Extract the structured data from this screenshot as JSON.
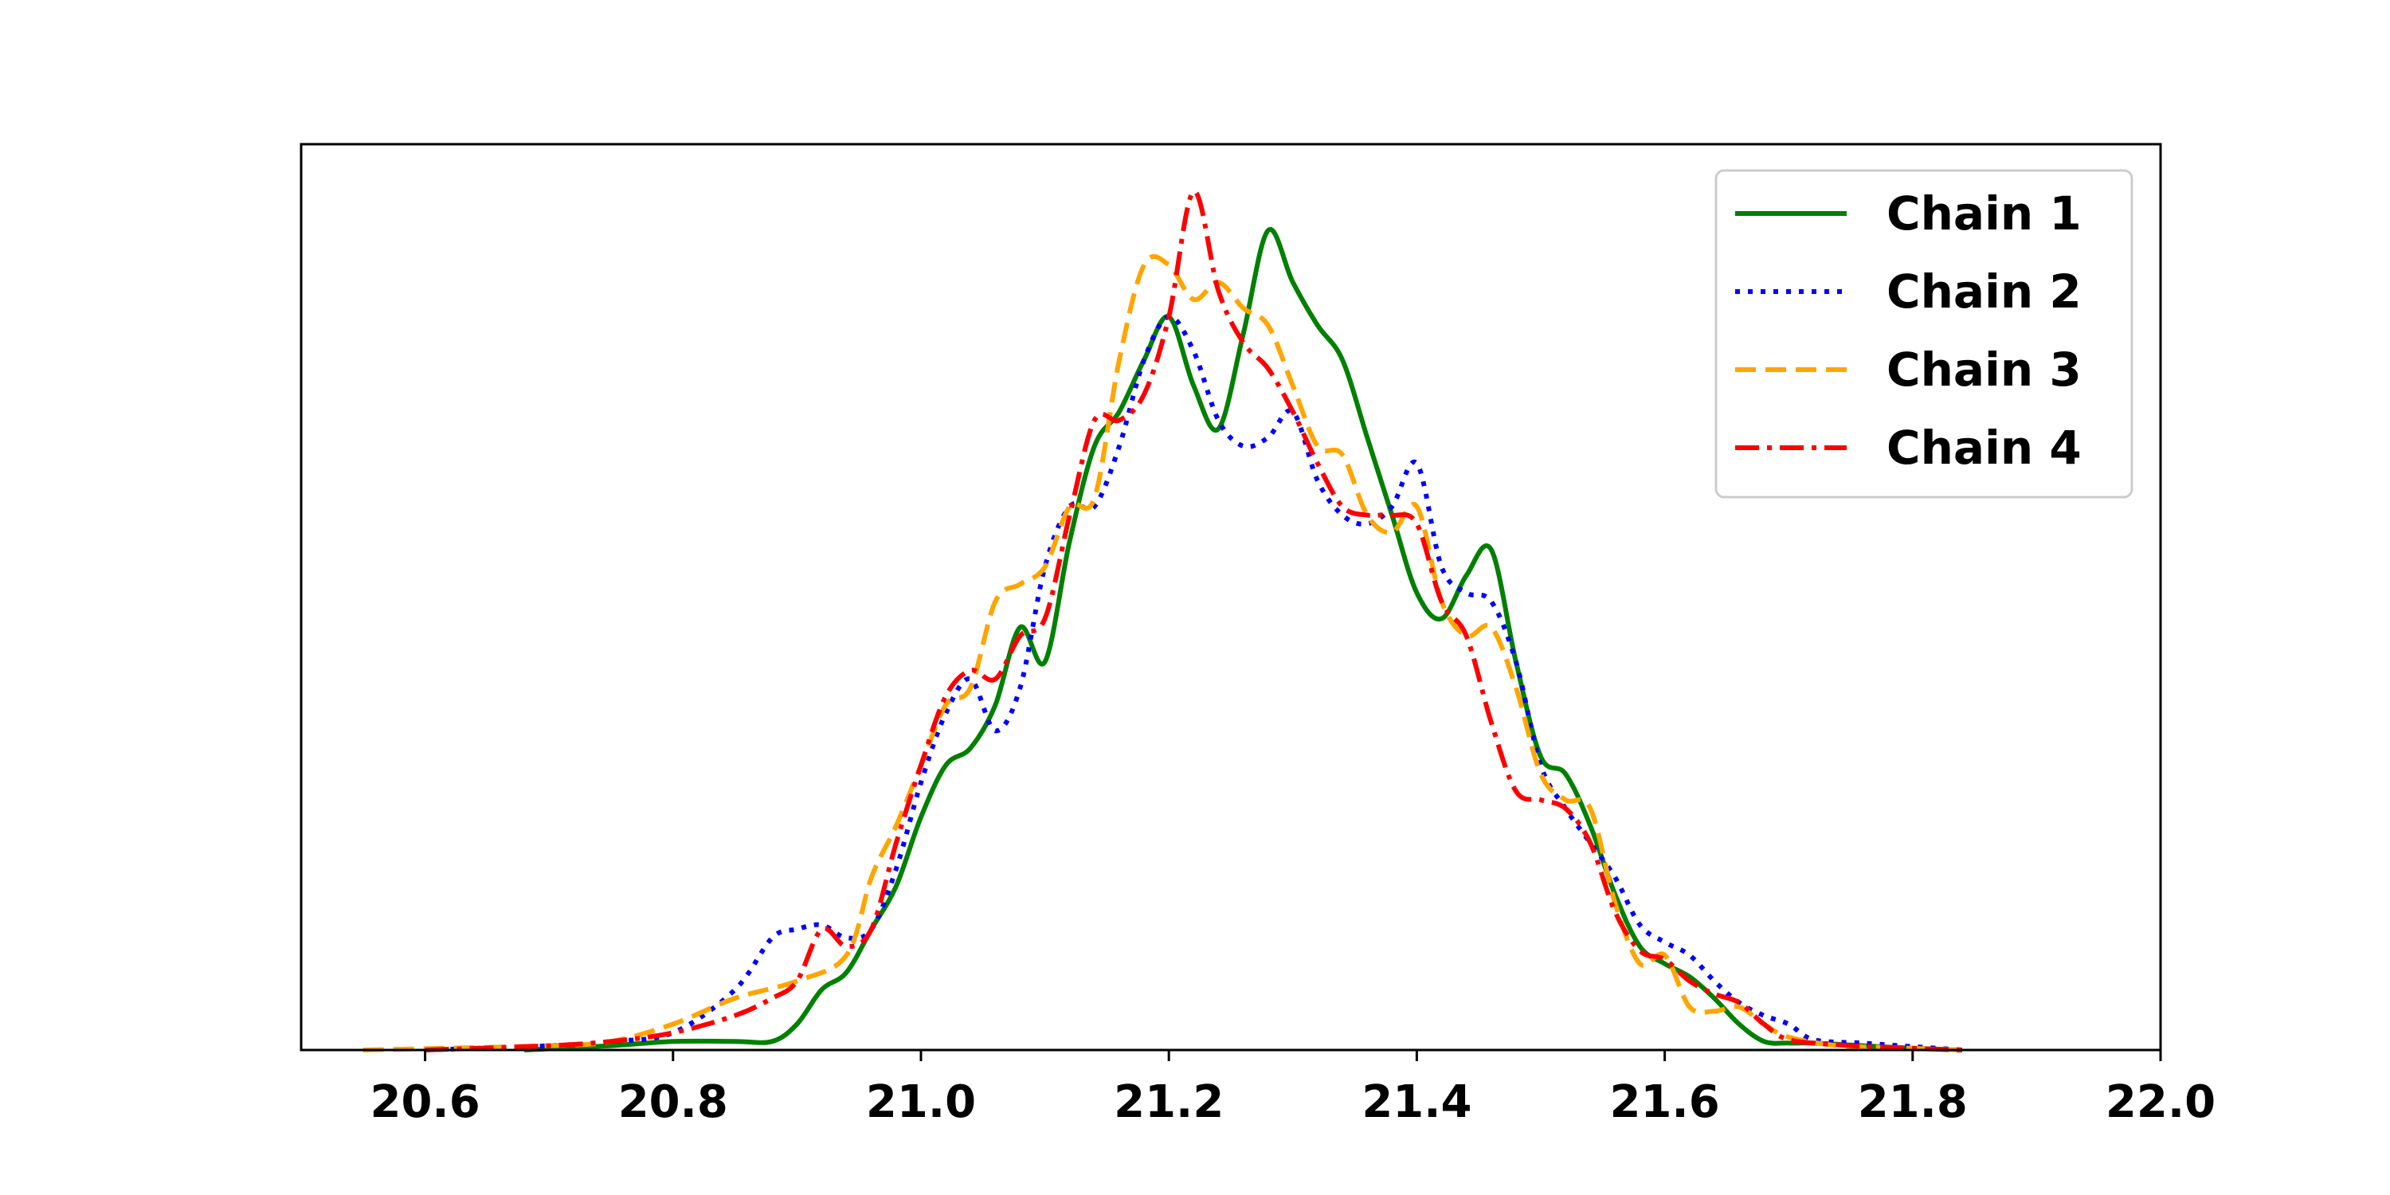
{
  "chart_data": {
    "type": "line",
    "title": "",
    "xlabel": "",
    "ylabel": "",
    "xlim": [
      20.5,
      22.0
    ],
    "ylim": [
      0,
      1.05
    ],
    "xticks": [
      "20.6",
      "20.8",
      "21.0",
      "21.2",
      "21.4",
      "21.6",
      "21.8",
      "22.0"
    ],
    "yticks_visible": false,
    "grid": false,
    "legend_position": "top-right",
    "series": [
      {
        "name": "Chain 1",
        "color": "#008000",
        "dash": "solid",
        "x": [
          20.68,
          20.75,
          20.8,
          20.85,
          20.88,
          20.9,
          20.92,
          20.94,
          20.96,
          20.98,
          21.0,
          21.02,
          21.04,
          21.06,
          21.08,
          21.1,
          21.12,
          21.14,
          21.16,
          21.18,
          21.2,
          21.22,
          21.24,
          21.26,
          21.28,
          21.3,
          21.32,
          21.34,
          21.36,
          21.38,
          21.4,
          21.42,
          21.44,
          21.46,
          21.48,
          21.5,
          21.52,
          21.54,
          21.56,
          21.58,
          21.6,
          21.62,
          21.64,
          21.66,
          21.68,
          21.7,
          21.72,
          21.76,
          21.8,
          21.84
        ],
        "y": [
          0.0,
          0.005,
          0.01,
          0.01,
          0.01,
          0.03,
          0.07,
          0.09,
          0.14,
          0.19,
          0.27,
          0.33,
          0.35,
          0.4,
          0.49,
          0.45,
          0.59,
          0.7,
          0.74,
          0.8,
          0.85,
          0.77,
          0.72,
          0.83,
          0.95,
          0.89,
          0.84,
          0.8,
          0.71,
          0.62,
          0.53,
          0.5,
          0.55,
          0.58,
          0.45,
          0.34,
          0.32,
          0.26,
          0.18,
          0.12,
          0.1,
          0.085,
          0.06,
          0.03,
          0.01,
          0.008,
          0.008,
          0.005,
          0.002,
          0.0
        ]
      },
      {
        "name": "Chain 2",
        "color": "#0000ff",
        "dash": "dotted",
        "x": [
          20.6,
          20.7,
          20.75,
          20.8,
          20.85,
          20.88,
          20.9,
          20.92,
          20.94,
          20.96,
          20.98,
          21.0,
          21.02,
          21.04,
          21.06,
          21.08,
          21.1,
          21.12,
          21.14,
          21.16,
          21.18,
          21.2,
          21.22,
          21.24,
          21.26,
          21.28,
          21.3,
          21.32,
          21.34,
          21.36,
          21.38,
          21.4,
          21.42,
          21.44,
          21.46,
          21.48,
          21.5,
          21.52,
          21.54,
          21.56,
          21.58,
          21.6,
          21.62,
          21.64,
          21.66,
          21.68,
          21.7,
          21.72,
          21.76,
          21.8,
          21.84
        ],
        "y": [
          0.0,
          0.005,
          0.01,
          0.02,
          0.07,
          0.13,
          0.14,
          0.145,
          0.13,
          0.14,
          0.21,
          0.31,
          0.39,
          0.43,
          0.37,
          0.42,
          0.56,
          0.63,
          0.63,
          0.7,
          0.8,
          0.85,
          0.81,
          0.73,
          0.7,
          0.71,
          0.74,
          0.66,
          0.62,
          0.61,
          0.63,
          0.68,
          0.56,
          0.53,
          0.52,
          0.45,
          0.33,
          0.28,
          0.24,
          0.2,
          0.145,
          0.125,
          0.11,
          0.08,
          0.055,
          0.04,
          0.03,
          0.012,
          0.008,
          0.004,
          0.0
        ]
      },
      {
        "name": "Chain 3",
        "color": "#ffa500",
        "dash": "dashed",
        "x": [
          20.55,
          20.7,
          20.75,
          20.8,
          20.85,
          20.9,
          20.94,
          20.96,
          20.98,
          21.0,
          21.02,
          21.04,
          21.06,
          21.08,
          21.1,
          21.12,
          21.14,
          21.16,
          21.18,
          21.2,
          21.22,
          21.24,
          21.26,
          21.28,
          21.3,
          21.32,
          21.34,
          21.36,
          21.38,
          21.4,
          21.42,
          21.44,
          21.46,
          21.48,
          21.5,
          21.52,
          21.54,
          21.56,
          21.58,
          21.6,
          21.62,
          21.64,
          21.66,
          21.68,
          21.7,
          21.74,
          21.78,
          21.84
        ],
        "y": [
          0.0,
          0.005,
          0.01,
          0.03,
          0.06,
          0.08,
          0.11,
          0.2,
          0.26,
          0.33,
          0.4,
          0.42,
          0.52,
          0.54,
          0.56,
          0.63,
          0.64,
          0.8,
          0.91,
          0.91,
          0.87,
          0.89,
          0.86,
          0.84,
          0.77,
          0.7,
          0.69,
          0.62,
          0.6,
          0.63,
          0.52,
          0.48,
          0.49,
          0.42,
          0.32,
          0.29,
          0.28,
          0.17,
          0.1,
          0.11,
          0.05,
          0.045,
          0.05,
          0.03,
          0.015,
          0.005,
          0.003,
          0.0
        ]
      },
      {
        "name": "Chain 4",
        "color": "#ff0000",
        "dash": "dashdot",
        "x": [
          20.6,
          20.7,
          20.75,
          20.8,
          20.85,
          20.88,
          20.9,
          20.92,
          20.94,
          20.96,
          20.98,
          21.0,
          21.02,
          21.04,
          21.06,
          21.08,
          21.1,
          21.12,
          21.14,
          21.16,
          21.18,
          21.2,
          21.22,
          21.24,
          21.26,
          21.28,
          21.3,
          21.32,
          21.34,
          21.36,
          21.38,
          21.4,
          21.42,
          21.44,
          21.46,
          21.48,
          21.5,
          21.52,
          21.54,
          21.56,
          21.58,
          21.6,
          21.62,
          21.64,
          21.66,
          21.68,
          21.7,
          21.74,
          21.78,
          21.84
        ],
        "y": [
          0.0,
          0.005,
          0.01,
          0.02,
          0.04,
          0.06,
          0.08,
          0.14,
          0.12,
          0.14,
          0.24,
          0.33,
          0.41,
          0.44,
          0.43,
          0.48,
          0.5,
          0.62,
          0.73,
          0.73,
          0.76,
          0.85,
          0.995,
          0.88,
          0.82,
          0.79,
          0.74,
          0.68,
          0.63,
          0.62,
          0.62,
          0.61,
          0.52,
          0.48,
          0.38,
          0.3,
          0.29,
          0.28,
          0.24,
          0.16,
          0.115,
          0.105,
          0.08,
          0.065,
          0.055,
          0.03,
          0.012,
          0.006,
          0.003,
          0.0
        ]
      }
    ]
  }
}
